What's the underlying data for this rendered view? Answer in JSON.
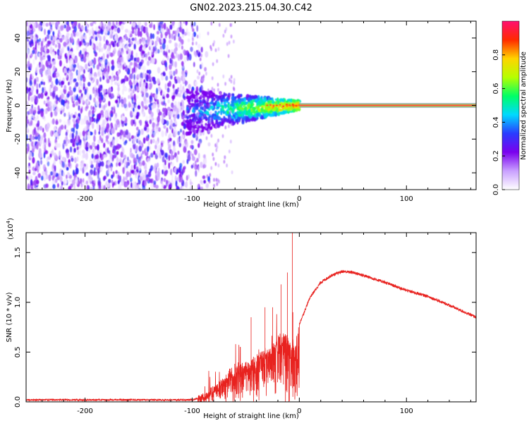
{
  "title": "GN02.2023.215.04.30.C42",
  "chart_data": [
    {
      "type": "heatmap",
      "title": "GN02.2023.215.04.30.C42",
      "xlabel": "Height of straight line (km)",
      "ylabel": "Frequency (Hz)",
      "xlim": [
        -255,
        165
      ],
      "ylim": [
        -50,
        50
      ],
      "x_ticks": [
        -200,
        -100,
        0,
        100
      ],
      "x_tick_labels": [
        "-200",
        "-100",
        "0",
        "100"
      ],
      "y_ticks": [
        -40,
        -20,
        0,
        20,
        40
      ],
      "y_tick_labels": [
        "-40",
        "-20",
        "0",
        "20",
        "40"
      ],
      "regions": {
        "noise_end_km": -90,
        "transition_start_km": -105,
        "transition_end_km": 0,
        "steady_line_start_km": 0,
        "steady_line_freq_hz": 0
      },
      "colorbar": {
        "label": "Normalized spectral amplitude",
        "range": [
          0,
          1
        ],
        "ticks": [
          0.0,
          0.2,
          0.4,
          0.6,
          0.8
        ],
        "tick_labels": [
          "0.0",
          "0.2",
          "0.4",
          "0.6",
          "0.8"
        ],
        "colors": [
          "#ffffff",
          "#c9a0ff",
          "#7a00ee",
          "#2a3cff",
          "#00d9ff",
          "#00ff66",
          "#b6ff00",
          "#ffd400",
          "#ff2a00",
          "#ff1070"
        ]
      }
    },
    {
      "type": "line",
      "xlabel": "Height of straight line (km)",
      "ylabel": "SNR (10 * v/v)",
      "scale_label": "(x10",
      "scale_exponent": "4",
      "scale_suffix": ")",
      "xlim": [
        -255,
        165
      ],
      "ylim": [
        0,
        1.7
      ],
      "x_ticks": [
        -200,
        -100,
        0,
        100
      ],
      "x_tick_labels": [
        "-200",
        "-100",
        "0",
        "100"
      ],
      "y_ticks": [
        0.0,
        0.5,
        1.0,
        1.5
      ],
      "y_tick_labels": [
        "0.0",
        "0.5",
        "1.0",
        "1.5"
      ],
      "color": "#e8221f",
      "series": [
        {
          "name": "SNR",
          "x": [
            -255,
            -200,
            -150,
            -100,
            -92,
            -85,
            -75,
            -65,
            -55,
            -45,
            -35,
            -25,
            -17,
            -12,
            -7,
            -4,
            0,
            10,
            20,
            30,
            40,
            50,
            60,
            80,
            100,
            120,
            140,
            165
          ],
          "y": [
            0.02,
            0.02,
            0.02,
            0.02,
            0.04,
            0.08,
            0.18,
            0.3,
            0.35,
            0.4,
            0.5,
            0.55,
            0.7,
            0.65,
            0.55,
            0.6,
            0.78,
            1.05,
            1.2,
            1.27,
            1.31,
            1.3,
            1.27,
            1.2,
            1.12,
            1.06,
            0.97,
            0.85
          ]
        }
      ],
      "spikes": [
        {
          "x": -55,
          "y": 0.55
        },
        {
          "x": -45,
          "y": 0.85
        },
        {
          "x": -32,
          "y": 0.95
        },
        {
          "x": -25,
          "y": 0.95
        },
        {
          "x": -17,
          "y": 1.18
        },
        {
          "x": -11,
          "y": 1.3
        },
        {
          "x": -6.5,
          "y": 1.7
        }
      ]
    }
  ]
}
